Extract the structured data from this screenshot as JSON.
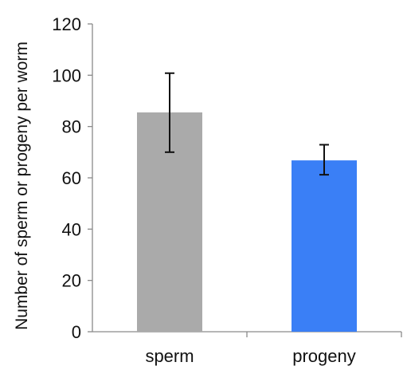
{
  "chart_data": {
    "type": "bar",
    "title": "",
    "xlabel": "",
    "ylabel": "Number of sperm or progeny per worm",
    "categories": [
      "sperm",
      "progeny"
    ],
    "values": [
      85.5,
      66.8
    ],
    "error_upper": [
      100.8,
      72.9
    ],
    "error_lower": [
      70.0,
      61.2
    ],
    "colors": [
      "#aaaaaa",
      "#3a7ff6"
    ],
    "ylim": [
      0,
      120
    ],
    "yticks": [
      0,
      20,
      40,
      60,
      80,
      100,
      120
    ],
    "grid": false,
    "legend": "none"
  }
}
